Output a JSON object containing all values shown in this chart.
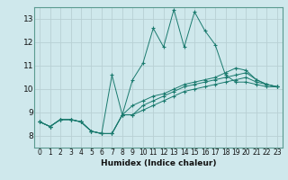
{
  "title": "",
  "xlabel": "Humidex (Indice chaleur)",
  "xlim": [
    -0.5,
    23.5
  ],
  "ylim": [
    7.5,
    13.5
  ],
  "yticks": [
    8,
    9,
    10,
    11,
    12,
    13
  ],
  "xticks": [
    0,
    1,
    2,
    3,
    4,
    5,
    6,
    7,
    8,
    9,
    10,
    11,
    12,
    13,
    14,
    15,
    16,
    17,
    18,
    19,
    20,
    21,
    22,
    23
  ],
  "bg_color": "#cfe8ec",
  "line_color": "#1a7a6e",
  "grid_color": "#b8d0d4",
  "lines": [
    [
      8.6,
      8.4,
      8.7,
      8.7,
      8.6,
      8.2,
      8.1,
      10.6,
      8.9,
      10.4,
      11.1,
      12.6,
      11.8,
      13.4,
      11.8,
      13.3,
      12.5,
      11.9,
      10.6,
      10.3,
      10.3,
      10.2,
      10.1,
      10.1
    ],
    [
      8.6,
      8.4,
      8.7,
      8.7,
      8.6,
      8.2,
      8.1,
      8.1,
      8.9,
      8.9,
      9.3,
      9.5,
      9.7,
      9.9,
      10.1,
      10.2,
      10.3,
      10.4,
      10.5,
      10.6,
      10.7,
      10.4,
      10.2,
      10.1
    ],
    [
      8.6,
      8.4,
      8.7,
      8.7,
      8.6,
      8.2,
      8.1,
      8.1,
      8.9,
      8.9,
      9.1,
      9.3,
      9.5,
      9.7,
      9.9,
      10.0,
      10.1,
      10.2,
      10.3,
      10.4,
      10.5,
      10.3,
      10.2,
      10.1
    ],
    [
      8.6,
      8.4,
      8.7,
      8.7,
      8.6,
      8.2,
      8.1,
      8.1,
      8.9,
      9.3,
      9.5,
      9.7,
      9.8,
      10.0,
      10.2,
      10.3,
      10.4,
      10.5,
      10.7,
      10.9,
      10.8,
      10.4,
      10.2,
      10.1
    ]
  ],
  "xtick_fontsize": 5.5,
  "ytick_fontsize": 6.5,
  "xlabel_fontsize": 6.5
}
